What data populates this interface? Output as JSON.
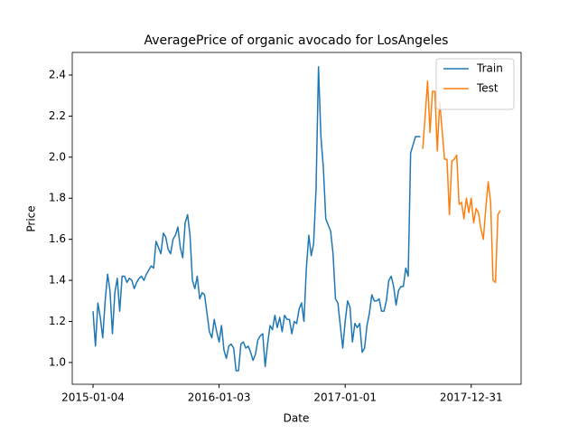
{
  "chart_data": {
    "type": "line",
    "title": "AveragePrice of organic avocado for LosAngeles",
    "x_label": "Date",
    "y_label": "Price",
    "xlim": [
      "2014-11-05",
      "2018-05-24"
    ],
    "xticks": [
      "2015-01-04",
      "2016-01-03",
      "2017-01-01",
      "2017-12-31"
    ],
    "ylim": [
      0.894,
      2.51
    ],
    "yticks": [
      {
        "value": 1,
        "label": "1.0"
      },
      {
        "value": 1.2,
        "label": "1.2"
      },
      {
        "value": 1.4,
        "label": "1.4"
      },
      {
        "value": 1.6,
        "label": "1.6"
      },
      {
        "value": 1.8,
        "label": "1.8"
      },
      {
        "value": 2,
        "label": "2.0"
      },
      {
        "value": 2.2,
        "label": "2.2"
      },
      {
        "value": 2.4,
        "label": "2.4"
      }
    ],
    "legend": "upper right",
    "series": [
      {
        "name": "Train",
        "color": "#1f77b4",
        "x": [
          "2015-01-04",
          "2015-01-11",
          "2015-01-18",
          "2015-01-25",
          "2015-02-01",
          "2015-02-08",
          "2015-02-15",
          "2015-02-22",
          "2015-03-01",
          "2015-03-08",
          "2015-03-15",
          "2015-03-22",
          "2015-03-29",
          "2015-04-05",
          "2015-04-12",
          "2015-04-19",
          "2015-04-26",
          "2015-05-03",
          "2015-05-10",
          "2015-05-17",
          "2015-05-24",
          "2015-05-31",
          "2015-06-07",
          "2015-06-14",
          "2015-06-21",
          "2015-06-28",
          "2015-07-05",
          "2015-07-12",
          "2015-07-19",
          "2015-07-26",
          "2015-08-02",
          "2015-08-09",
          "2015-08-16",
          "2015-08-23",
          "2015-08-30",
          "2015-09-06",
          "2015-09-13",
          "2015-09-20",
          "2015-09-27",
          "2015-10-04",
          "2015-10-11",
          "2015-10-18",
          "2015-10-25",
          "2015-11-01",
          "2015-11-08",
          "2015-11-15",
          "2015-11-22",
          "2015-11-29",
          "2015-12-06",
          "2015-12-13",
          "2015-12-20",
          "2015-12-27",
          "2016-01-03",
          "2016-01-10",
          "2016-01-17",
          "2016-01-24",
          "2016-01-31",
          "2016-02-07",
          "2016-02-14",
          "2016-02-21",
          "2016-02-28",
          "2016-03-06",
          "2016-03-13",
          "2016-03-20",
          "2016-03-27",
          "2016-04-03",
          "2016-04-10",
          "2016-04-17",
          "2016-04-24",
          "2016-05-01",
          "2016-05-08",
          "2016-05-15",
          "2016-05-22",
          "2016-05-29",
          "2016-06-05",
          "2016-06-12",
          "2016-06-19",
          "2016-06-26",
          "2016-07-03",
          "2016-07-10",
          "2016-07-17",
          "2016-07-24",
          "2016-07-31",
          "2016-08-07",
          "2016-08-14",
          "2016-08-21",
          "2016-08-28",
          "2016-09-04",
          "2016-09-11",
          "2016-09-18",
          "2016-09-25",
          "2016-10-02",
          "2016-10-09",
          "2016-10-16",
          "2016-10-23",
          "2016-10-30",
          "2016-11-06",
          "2016-11-13",
          "2016-11-20",
          "2016-11-27",
          "2016-12-04",
          "2016-12-11",
          "2016-12-18",
          "2016-12-25",
          "2017-01-01",
          "2017-01-08",
          "2017-01-15",
          "2017-01-22",
          "2017-01-29",
          "2017-02-05",
          "2017-02-12",
          "2017-02-19",
          "2017-02-26",
          "2017-03-05",
          "2017-03-12",
          "2017-03-19",
          "2017-03-26",
          "2017-04-02",
          "2017-04-09",
          "2017-04-16",
          "2017-04-23",
          "2017-04-30",
          "2017-05-07",
          "2017-05-14",
          "2017-05-21",
          "2017-05-28",
          "2017-06-04",
          "2017-06-11",
          "2017-06-18",
          "2017-06-25",
          "2017-07-02",
          "2017-07-09",
          "2017-07-16",
          "2017-07-23",
          "2017-07-30",
          "2017-08-06"
        ],
        "values": [
          1.25,
          1.08,
          1.29,
          1.22,
          1.12,
          1.3,
          1.43,
          1.35,
          1.14,
          1.34,
          1.41,
          1.25,
          1.42,
          1.42,
          1.39,
          1.41,
          1.4,
          1.36,
          1.39,
          1.41,
          1.42,
          1.4,
          1.43,
          1.45,
          1.47,
          1.46,
          1.59,
          1.56,
          1.53,
          1.63,
          1.61,
          1.55,
          1.53,
          1.6,
          1.62,
          1.66,
          1.56,
          1.51,
          1.68,
          1.72,
          1.62,
          1.4,
          1.36,
          1.42,
          1.31,
          1.34,
          1.33,
          1.24,
          1.15,
          1.12,
          1.21,
          1.15,
          1.1,
          1.18,
          1.06,
          1.02,
          1.08,
          1.09,
          1.07,
          0.96,
          0.96,
          1.09,
          1.1,
          1.07,
          1.08,
          1.05,
          1.01,
          1.04,
          1.11,
          1.13,
          1.14,
          0.98,
          1.09,
          1.18,
          1.16,
          1.23,
          1.17,
          1.22,
          1.15,
          1.23,
          1.21,
          1.21,
          1.14,
          1.2,
          1.19,
          1.26,
          1.29,
          1.2,
          1.46,
          1.62,
          1.52,
          1.58,
          1.85,
          2.44,
          2.1,
          1.95,
          1.7,
          1.67,
          1.64,
          1.53,
          1.31,
          1.29,
          1.18,
          1.07,
          1.2,
          1.3,
          1.27,
          1.1,
          1.19,
          1.17,
          1.19,
          1.05,
          1.07,
          1.18,
          1.24,
          1.33,
          1.3,
          1.3,
          1.31,
          1.25,
          1.25,
          1.3,
          1.4,
          1.42,
          1.37,
          1.28,
          1.35,
          1.37,
          1.37,
          1.46,
          1.42,
          2.02,
          2.06,
          2.1,
          2.1,
          2.1
        ]
      },
      {
        "name": "Test",
        "color": "#ff7f0e",
        "x": [
          "2017-08-13",
          "2017-08-20",
          "2017-08-27",
          "2017-09-03",
          "2017-09-10",
          "2017-09-17",
          "2017-09-24",
          "2017-10-01",
          "2017-10-08",
          "2017-10-15",
          "2017-10-22",
          "2017-10-29",
          "2017-11-05",
          "2017-11-12",
          "2017-11-19",
          "2017-11-26",
          "2017-12-03",
          "2017-12-10",
          "2017-12-17",
          "2017-12-24",
          "2017-12-31",
          "2018-01-07",
          "2018-01-14",
          "2018-01-21",
          "2018-01-28",
          "2018-02-04",
          "2018-02-11",
          "2018-02-18",
          "2018-02-25",
          "2018-03-04",
          "2018-03-11",
          "2018-03-18",
          "2018-03-25"
        ],
        "values": [
          2.04,
          2.2,
          2.37,
          2.12,
          2.32,
          2.32,
          2.03,
          2.27,
          2.13,
          1.99,
          1.99,
          1.72,
          1.98,
          1.99,
          2.01,
          1.77,
          1.78,
          1.7,
          1.8,
          1.73,
          1.8,
          1.68,
          1.75,
          1.73,
          1.65,
          1.6,
          1.75,
          1.88,
          1.78,
          1.4,
          1.39,
          1.72,
          1.74
        ]
      }
    ]
  }
}
